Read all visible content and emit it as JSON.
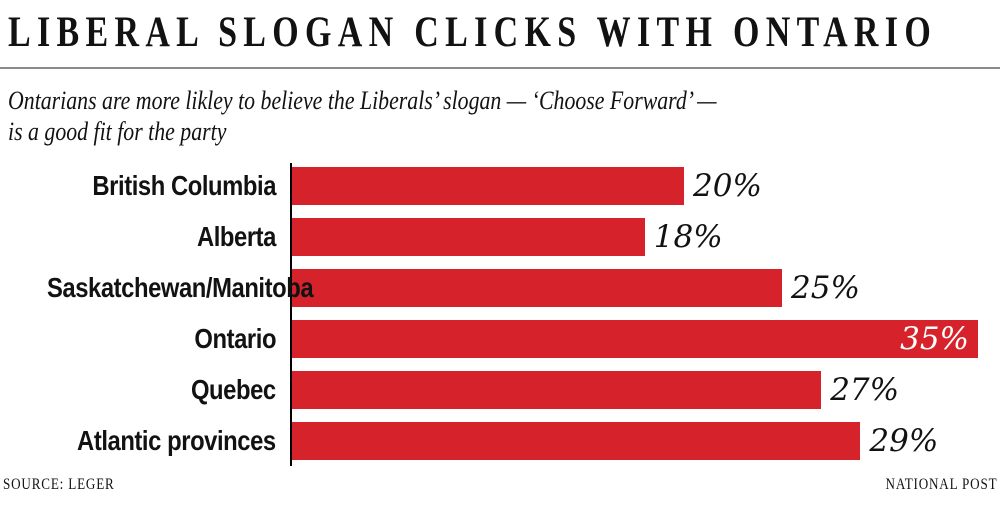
{
  "header": {
    "title": "LIBERAL SLOGAN CLICKS WITH ONTARIO"
  },
  "subtitle": {
    "line1": "Ontarians are more likley to believe the Liberals’ slogan — ‘Choose Forward’ —",
    "line2": "is a good fit for the party"
  },
  "chart_data": {
    "type": "bar",
    "orientation": "horizontal",
    "title": "LIBERAL SLOGAN CLICKS WITH ONTARIO",
    "subtitle": "Ontarians are more likley to believe the Liberals’ slogan — ‘Choose Forward’ — is a good fit for the party",
    "categories": [
      "British Columbia",
      "Alberta",
      "Saskatchewan/Manitoba",
      "Ontario",
      "Quebec",
      "Atlantic provinces"
    ],
    "values": [
      20,
      18,
      25,
      35,
      27,
      29
    ],
    "value_labels": [
      "20%",
      "18%",
      "25%",
      "35%",
      "27%",
      "29%"
    ],
    "value_label_inside": [
      false,
      false,
      false,
      true,
      false,
      false
    ],
    "xlabel": "",
    "ylabel": "",
    "xlim": [
      0,
      35
    ],
    "grid": false,
    "legend": false,
    "bar_color": "#d6232b",
    "axis_color": "#000000",
    "value_label_color": "#121212",
    "value_label_inside_color": "#ffffff"
  },
  "footer": {
    "source": "SOURCE: LEGER",
    "credit": "NATIONAL POST"
  }
}
